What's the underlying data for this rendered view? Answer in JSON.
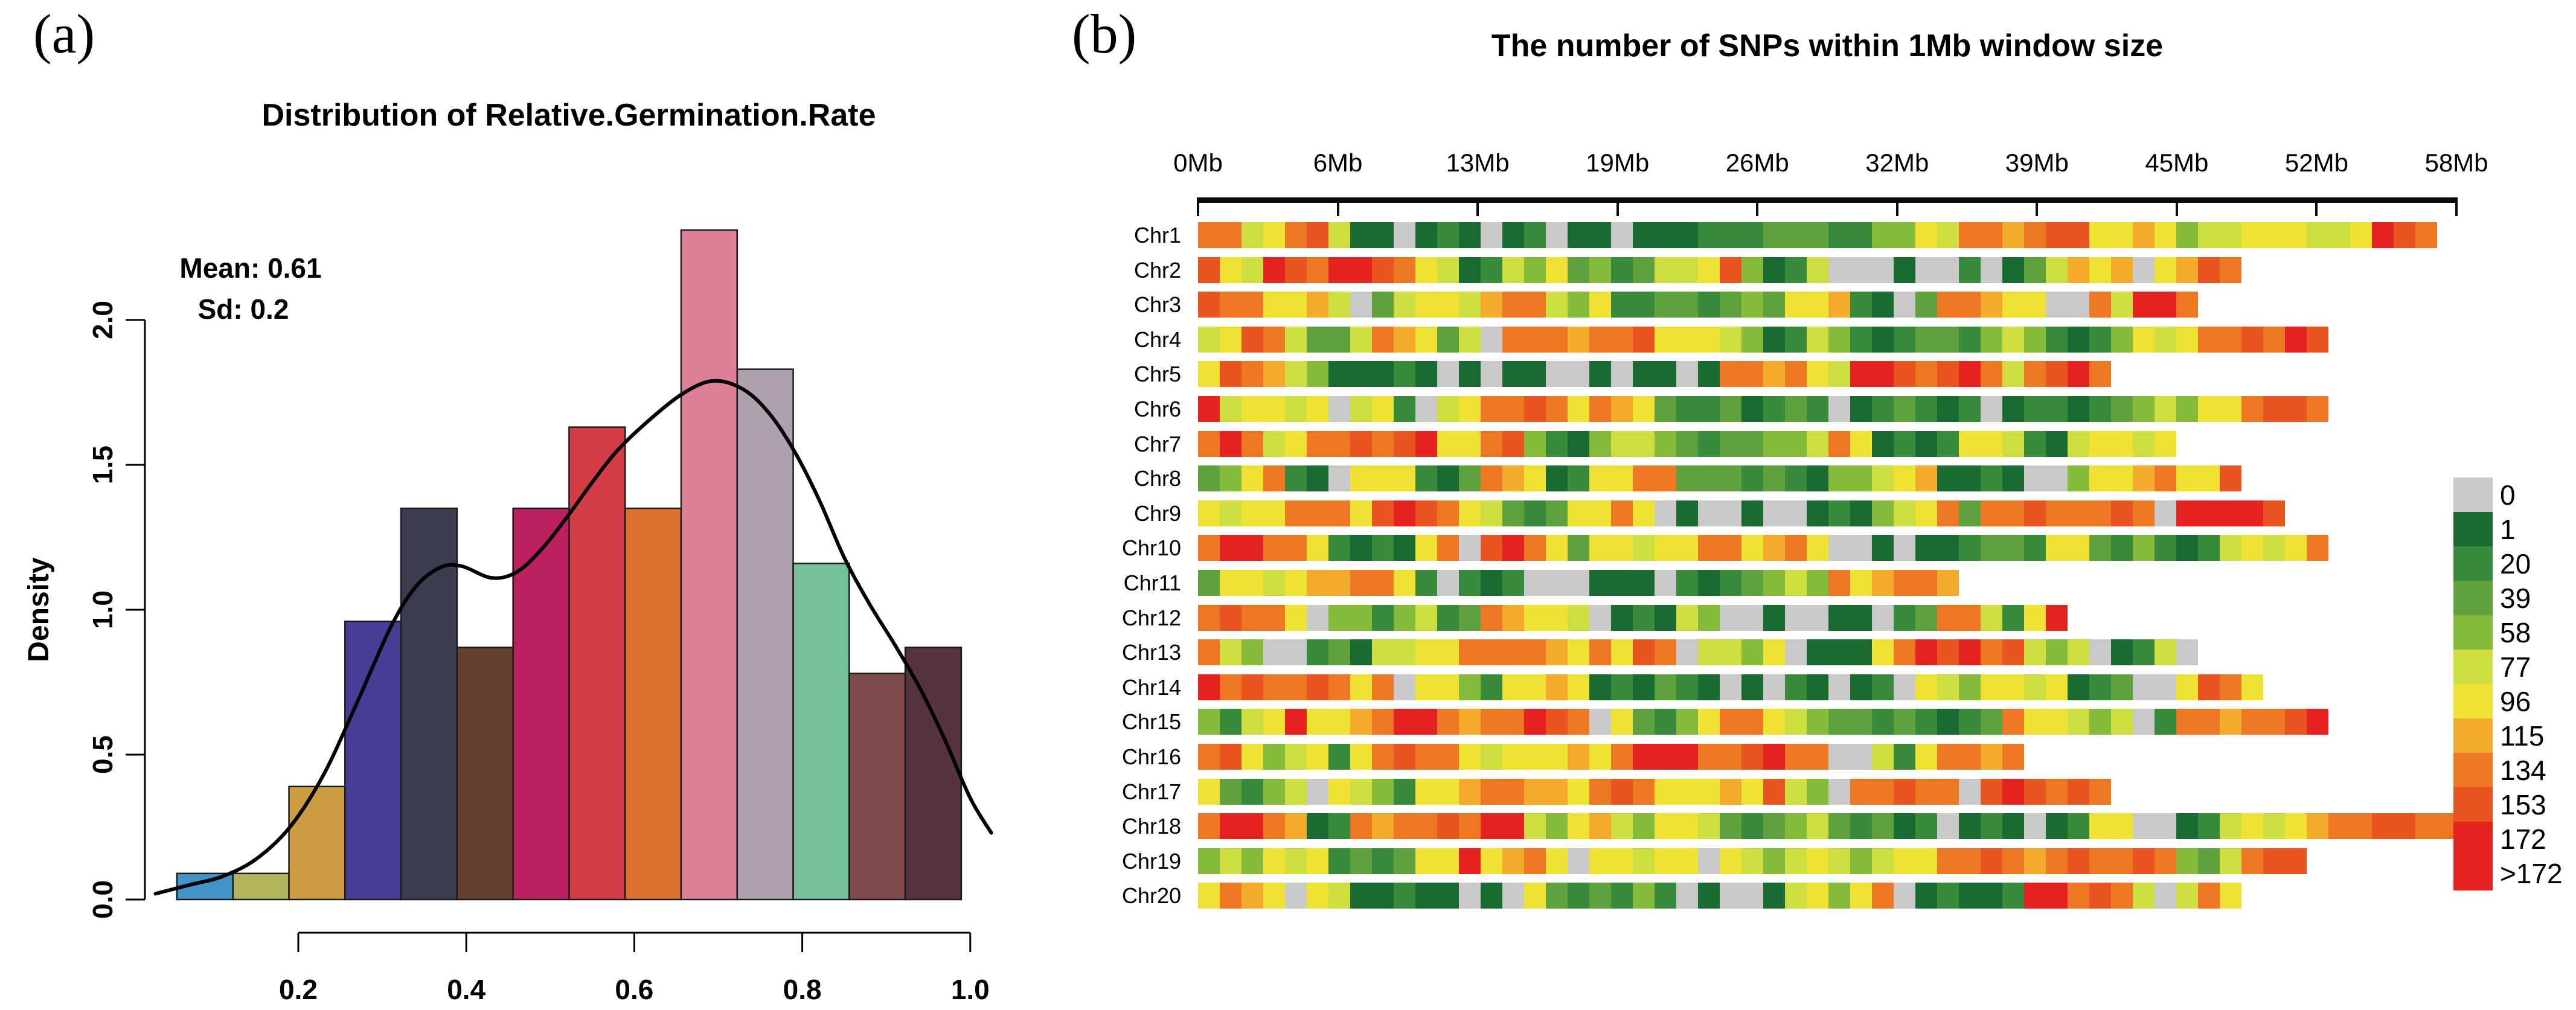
{
  "panel_a": {
    "label": "(a)",
    "title": "Distribution of Relative.Germination.Rate",
    "annotation": {
      "mean_line": "Mean: 0.61",
      "sd_line": "Sd: 0.2"
    },
    "ylabel": "Density",
    "x_tick_labels": [
      "0.2",
      "0.4",
      "0.6",
      "0.8",
      "1.0"
    ],
    "y_tick_labels": [
      "0.0",
      "0.5",
      "1.0",
      "1.5",
      "2.0"
    ]
  },
  "panel_b": {
    "label": "(b)",
    "title": "The number of SNPs within 1Mb window size",
    "axis_tick_labels": [
      "0Mb",
      "6Mb",
      "13Mb",
      "19Mb",
      "26Mb",
      "32Mb",
      "39Mb",
      "45Mb",
      "52Mb",
      "58Mb"
    ]
  },
  "chart_data": [
    {
      "type": "bar",
      "name": "germination_rate_histogram",
      "title": "Distribution of Relative.Germination.Rate",
      "xlabel": "",
      "ylabel": "Density",
      "xlim": [
        0.03,
        1.05
      ],
      "ylim": [
        0.0,
        2.31
      ],
      "x_ticks": [
        0.2,
        0.4,
        0.6,
        0.8,
        1.0
      ],
      "y_ticks": [
        0.0,
        0.5,
        1.0,
        1.5,
        2.0
      ],
      "mean": 0.61,
      "sd": 0.2,
      "bin_start": 0.0555,
      "bin_width": 0.0667,
      "densities": [
        0.09,
        0.09,
        0.39,
        0.96,
        1.35,
        0.87,
        1.35,
        1.63,
        1.35,
        2.31,
        1.83,
        1.16,
        0.78,
        0.87
      ],
      "bar_colors": [
        "#4293c8",
        "#b2b45c",
        "#cc9d40",
        "#463d94",
        "#3c3c4f",
        "#654030",
        "#bd2060",
        "#d43d45",
        "#de7130",
        "#db8096",
        "#afa0b0",
        "#74c098",
        "#7e4a4a",
        "#56333d"
      ],
      "bar_stroke": "#1a1a1a",
      "curve_color": "#000000",
      "density_curve": [
        [
          0.03,
          0.02
        ],
        [
          0.07,
          0.05
        ],
        [
          0.11,
          0.08
        ],
        [
          0.15,
          0.14
        ],
        [
          0.19,
          0.25
        ],
        [
          0.23,
          0.43
        ],
        [
          0.27,
          0.68
        ],
        [
          0.31,
          0.94
        ],
        [
          0.34,
          1.08
        ],
        [
          0.37,
          1.147
        ],
        [
          0.395,
          1.15
        ],
        [
          0.43,
          1.11
        ],
        [
          0.46,
          1.13
        ],
        [
          0.49,
          1.21
        ],
        [
          0.52,
          1.32
        ],
        [
          0.55,
          1.44
        ],
        [
          0.58,
          1.55
        ],
        [
          0.62,
          1.66
        ],
        [
          0.66,
          1.75
        ],
        [
          0.695,
          1.79
        ],
        [
          0.73,
          1.76
        ],
        [
          0.76,
          1.68
        ],
        [
          0.79,
          1.55
        ],
        [
          0.82,
          1.38
        ],
        [
          0.85,
          1.18
        ],
        [
          0.88,
          1.02
        ],
        [
          0.91,
          0.88
        ],
        [
          0.94,
          0.73
        ],
        [
          0.97,
          0.55
        ],
        [
          1.0,
          0.35
        ],
        [
          1.025,
          0.23
        ]
      ]
    },
    {
      "type": "heatmap",
      "name": "snp_density_per_chromosome",
      "title": "The number of SNPs within 1Mb window size",
      "window_mb": 1,
      "x_ticks_mb": [
        0,
        6,
        13,
        19,
        26,
        32,
        39,
        45,
        52,
        58
      ],
      "axis_max_mb": 58,
      "codes": "0123456789AB",
      "bins": [
        {
          "label": "0",
          "color": "#c9c9c9"
        },
        {
          "label": "1",
          "color": "#1a6b31"
        },
        {
          "label": "20",
          "color": "#398b3c"
        },
        {
          "label": "39",
          "color": "#5ea13d"
        },
        {
          "label": "58",
          "color": "#86ba3b"
        },
        {
          "label": "77",
          "color": "#cedd3f"
        },
        {
          "label": "96",
          "color": "#f0e232"
        },
        {
          "label": "115",
          "color": "#f3ab2c"
        },
        {
          "label": "134",
          "color": "#ed7722"
        },
        {
          "label": "153",
          "color": "#e85520"
        },
        {
          "label": "172",
          "color": "#e42321"
        },
        {
          "label": ">172",
          "color": "#e42321"
        }
      ],
      "chromosomes": [
        {
          "name": "Chr1",
          "windows": "88568951101210120110111222333224465887899667645566655 6A98"
        },
        {
          "name": "Chr2",
          "windows": "965B98BB98651254634235569412500010020135767 06798"
        },
        {
          "name": "Chr3",
          "windows": "988667503566578854622332343667210388766 0085BB8"
        },
        {
          "name": "Chr4",
          "windows": "5698533587635088878896665412542123324542124656889 8A9"
        },
        {
          "name": "Chr5",
          "windows": "698754111210101100101101887865BA989A8589A8"
        },
        {
          "name": "Chr6",
          "windows": "B5665605620568898687632231232012321201221234546689 98"
        },
        {
          "name": "Chr7",
          "windows": "8B85688989B66894214554323344586121266521 56656"
        },
        {
          "name": "Chr8",
          "windows": "3468210666213876126688333232144567112100 46678669"
        },
        {
          "name": "Chr9",
          "windows": "656688869B98653236686010010012145683889888980BBAB9"
        },
        {
          "name": "Chr10",
          "windows": "8BA88621216809A863665668867860010112332663242125656 8"
        },
        {
          "name": "Chr11",
          "windows": "36656778862021200011102123454867887"
        },
        {
          "name": "Chr12",
          "windows": "8988604424523876650121540010011023885 26A"
        },
        {
          "name": "Chr13",
          "windows": "8540023155668888768698055460111 68A9B8954501250"
        },
        {
          "name": "Chr14",
          "windows": "B89889868066426676121321010210120654665612300 6986"
        },
        {
          "name": "Chr15",
          "windows": "4256B6678BB8788B9806324688654332321238665450288788 9B"
        },
        {
          "name": "Chr16",
          "windows": "89645626898865666768BBA889B88005268878"
        },
        {
          "name": "Chr17",
          "windows": "632450654266788776898666769540889880 9B9898"
        },
        {
          "name": "Chr18",
          "windows": "8BB8712878898BA5467546653234532312012101266001256 567889988"
        },
        {
          "name": "Chr19",
          "windows": "4546562323 66B67860665660654565456688987898898435899"
        },
        {
          "name": "Chr20",
          "windows": "6876065112110106323242010015646801211 2BA89850586"
        }
      ]
    }
  ]
}
